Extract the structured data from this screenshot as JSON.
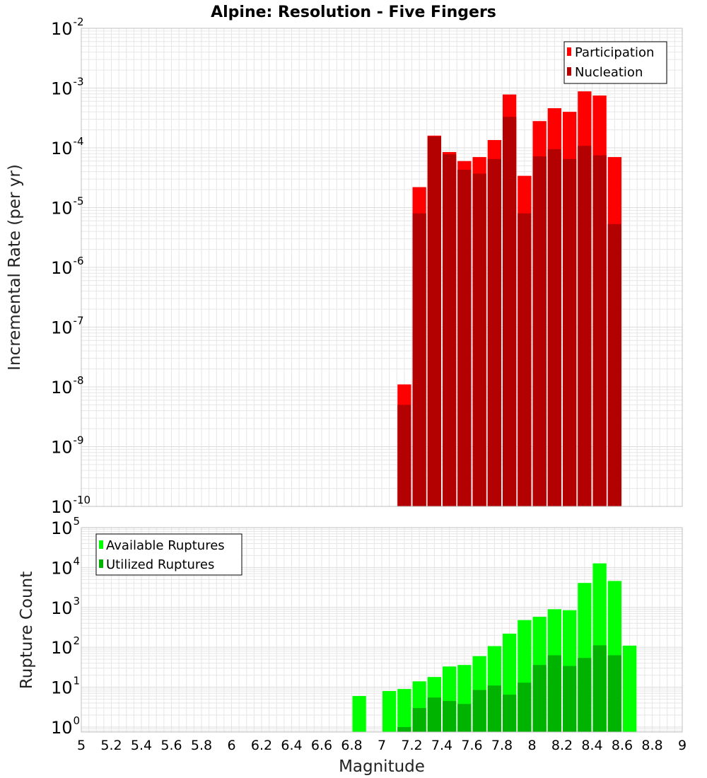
{
  "title": "Alpine: Resolution - Five Fingers",
  "xlabel": "Magnitude",
  "x_ticks": [
    "5",
    "5.2",
    "5.4",
    "5.6",
    "5.8",
    "6",
    "6.2",
    "6.4",
    "6.6",
    "6.8",
    "7",
    "7.2",
    "7.4",
    "7.6",
    "7.8",
    "8",
    "8.2",
    "8.4",
    "8.6",
    "8.8",
    "9"
  ],
  "colors": {
    "participation": "#ff0000",
    "nucleation": "#b30000",
    "available": "#00ff00",
    "utilized": "#00b300",
    "grid": "#e6e6e6",
    "frame": "#c0c0c0"
  },
  "chart_data": [
    {
      "type": "bar",
      "title": "Alpine: Resolution - Five Fingers",
      "xlabel": "Magnitude",
      "ylabel": "Incremental Rate (per yr)",
      "log_y": true,
      "xlim": [
        5,
        9
      ],
      "ylim": [
        1e-10,
        0.01
      ],
      "y_tick_exponents": [
        "-10",
        "-9",
        "-8",
        "-7",
        "-6",
        "-5",
        "-4",
        "-3",
        "-2"
      ],
      "legend_position": "top-right",
      "grid": true,
      "x": [
        7.15,
        7.25,
        7.35,
        7.45,
        7.55,
        7.65,
        7.75,
        7.85,
        7.95,
        8.05,
        8.15,
        8.25,
        8.35,
        8.45,
        8.55
      ],
      "series": [
        {
          "name": "Participation",
          "values": [
            1.1e-08,
            2.2e-05,
            0.00016,
            8.5e-05,
            6e-05,
            7e-05,
            0.000135,
            0.00078,
            3.4e-05,
            0.00028,
            0.00046,
            0.0004,
            0.00088,
            0.00075,
            7e-05
          ]
        },
        {
          "name": "Nucleation",
          "values": [
            5e-09,
            8e-06,
            0.000155,
            7.8e-05,
            4.3e-05,
            3.7e-05,
            6.5e-05,
            0.00033,
            8e-06,
            7.2e-05,
            9.5e-05,
            6.5e-05,
            0.000108,
            7.5e-05,
            5.3e-06
          ]
        }
      ]
    },
    {
      "type": "bar",
      "ylabel": "Rupture Count",
      "log_y": true,
      "xlim": [
        5,
        9
      ],
      "ylim": [
        0.75,
        100000.0
      ],
      "y_tick_exponents": [
        "0",
        "1",
        "2",
        "3",
        "4",
        "5"
      ],
      "legend_position": "top-left",
      "grid": true,
      "x": [
        6.85,
        7.05,
        7.15,
        7.25,
        7.35,
        7.45,
        7.55,
        7.65,
        7.75,
        7.85,
        7.95,
        8.05,
        8.15,
        8.25,
        8.35,
        8.45,
        8.55,
        8.65
      ],
      "series": [
        {
          "name": "Available Ruptures",
          "values": [
            6,
            8,
            9,
            14,
            18,
            33,
            36,
            60,
            107,
            220,
            480,
            580,
            900,
            850,
            4100,
            12700,
            4600,
            110
          ]
        },
        {
          "name": "Utilized Ruptures",
          "values": [
            0,
            0,
            1,
            3,
            5.5,
            4.5,
            3.8,
            8.5,
            11,
            6.5,
            13,
            36,
            63,
            34,
            54,
            112,
            63,
            0
          ]
        }
      ]
    }
  ]
}
